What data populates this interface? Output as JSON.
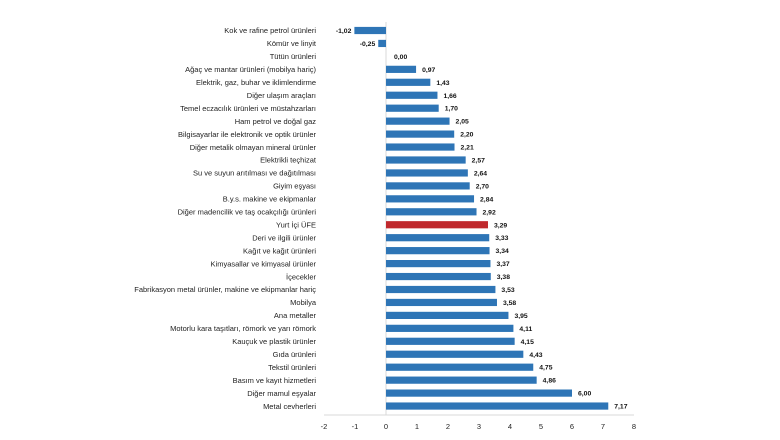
{
  "chart_data": {
    "type": "bar",
    "orientation": "horizontal",
    "categories": [
      "Kok ve rafine petrol ürünleri",
      "Kömür ve linyit",
      "Tütün ürünleri",
      "Ağaç ve mantar ürünleri (mobilya hariç)",
      "Elektrik, gaz, buhar ve iklimlendirme",
      "Diğer ulaşım araçları",
      "Temel eczacılık ürünleri ve müstahzarları",
      "Ham petrol ve doğal gaz",
      "Bilgisayarlar ile elektronik ve optik ürünler",
      "Diğer metalik olmayan mineral ürünler",
      "Elektrikli teçhizat",
      "Su ve suyun arıtılması ve dağıtılması",
      "Giyim eşyası",
      "B.y.s. makine ve ekipmanlar",
      "Diğer madencilik ve taş ocakçılığı ürünleri",
      "Yurt İçi ÜFE",
      "Deri ve ilgili ürünler",
      "Kağıt ve kağıt ürünleri",
      "Kimyasallar ve kimyasal ürünler",
      "İçecekler",
      "Fabrikasyon metal ürünler, makine ve ekipmanlar hariç",
      "Mobilya",
      "Ana metaller",
      "Motorlu kara taşıtları, römork ve yarı römork",
      "Kauçuk ve plastik ürünler",
      "Gıda ürünleri",
      "Tekstil ürünleri",
      "Basım ve kayıt hizmetleri",
      "Diğer mamul eşyalar",
      "Metal cevherleri"
    ],
    "values": [
      -1.02,
      -0.25,
      0.0,
      0.97,
      1.43,
      1.66,
      1.7,
      2.05,
      2.2,
      2.21,
      2.57,
      2.64,
      2.7,
      2.84,
      2.92,
      3.29,
      3.33,
      3.34,
      3.37,
      3.38,
      3.53,
      3.58,
      3.95,
      4.11,
      4.15,
      4.43,
      4.75,
      4.86,
      6.0,
      7.17
    ],
    "value_labels": [
      "-1,02",
      "-0,25",
      "0,00",
      "0,97",
      "1,43",
      "1,66",
      "1,70",
      "2,05",
      "2,20",
      "2,21",
      "2,57",
      "2,64",
      "2,70",
      "2,84",
      "2,92",
      "3,29",
      "3,33",
      "3,34",
      "3,37",
      "3,38",
      "3,53",
      "3,58",
      "3,95",
      "4,11",
      "4,15",
      "4,43",
      "4,75",
      "4,86",
      "6,00",
      "7,17"
    ],
    "highlight_category": "Yurt İçi ÜFE",
    "xlim": [
      -2,
      8
    ],
    "xticks": [
      -2,
      -1,
      0,
      1,
      2,
      3,
      4,
      5,
      6,
      7,
      8
    ],
    "grid": false,
    "colors": {
      "bar": "#2e75b6",
      "highlight": "#c0292d",
      "axis": "#d9d9d9"
    }
  }
}
